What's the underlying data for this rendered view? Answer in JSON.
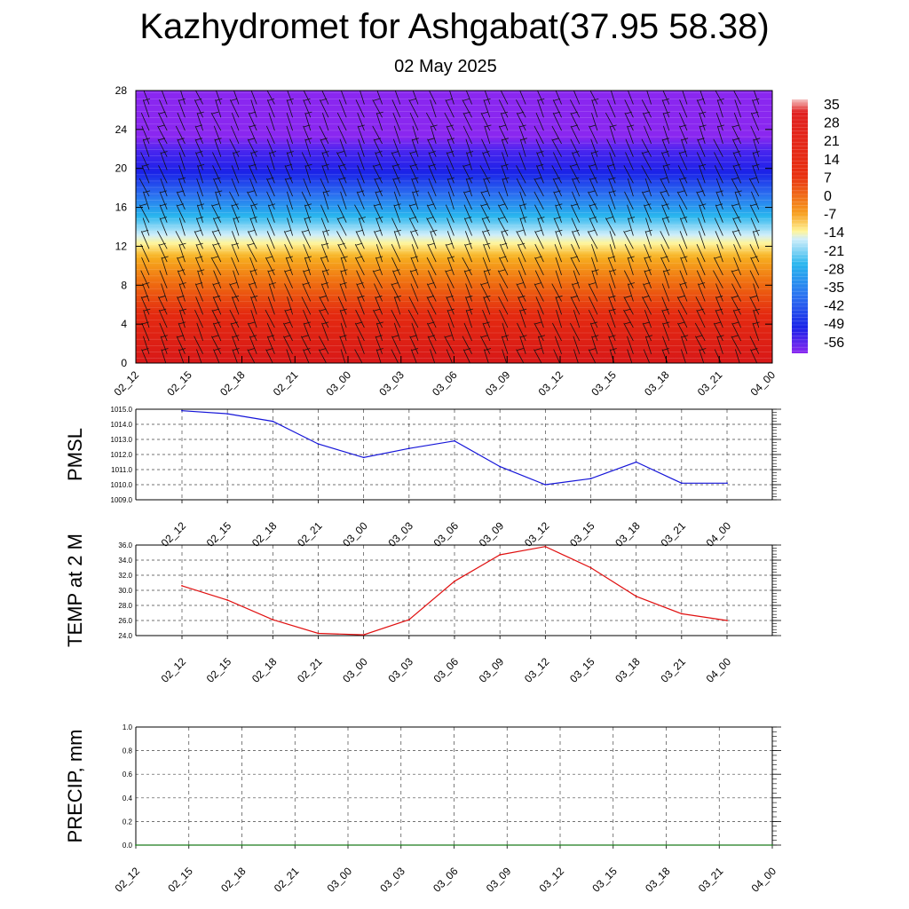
{
  "title": "Kazhydromet for Ashgabat(37.95 58.38)",
  "subtitle": "02 May 2025",
  "chart_data": [
    {
      "type": "heatmap",
      "name": "temperature-wind-cross-section",
      "x_labels": [
        "02_12",
        "02_15",
        "02_18",
        "02_21",
        "03_00",
        "03_03",
        "03_06",
        "03_09",
        "03_12",
        "03_15",
        "03_18",
        "03_21",
        "04_00"
      ],
      "y_ticks": [
        0,
        4,
        8,
        12,
        16,
        20,
        24,
        28
      ],
      "ylim": [
        0,
        28
      ],
      "colorbar_labels": [
        "35",
        "28",
        "21",
        "14",
        "7",
        "0",
        "-7",
        "-14",
        "-21",
        "-28",
        "-35",
        "-42",
        "-49",
        "-56"
      ],
      "colors": {
        "hot_top": "#f7b5b5",
        "hot": "#d81818",
        "orange": "#f58a10",
        "yellow": "#fff59a",
        "cyan": "#28b5ee",
        "blue": "#1a22e8",
        "purple": "#8a27f0"
      }
    },
    {
      "type": "line",
      "name": "pmsl",
      "ylabel": "PMSL",
      "x": [
        "02_12",
        "02_15",
        "02_18",
        "02_21",
        "03_00",
        "03_03",
        "03_06",
        "03_09",
        "03_12",
        "03_15",
        "03_18",
        "03_21",
        "04_00"
      ],
      "values": [
        1014.9,
        1014.7,
        1014.2,
        1012.7,
        1011.8,
        1012.4,
        1012.9,
        1011.2,
        1010.0,
        1010.4,
        1011.5,
        1010.1,
        1010.1
      ],
      "ylim": [
        1009.0,
        1015.0
      ],
      "y_ticks": [
        "1009.0",
        "1010.0",
        "1011.0",
        "1012.0",
        "1013.0",
        "1014.0",
        "1015.0"
      ],
      "color": "#1515d8"
    },
    {
      "type": "line",
      "name": "temp-2m",
      "ylabel": "TEMP at 2 M",
      "x": [
        "02_12",
        "02_15",
        "02_18",
        "02_21",
        "03_00",
        "03_03",
        "03_06",
        "03_09",
        "03_12",
        "03_15",
        "03_18",
        "03_21",
        "04_00"
      ],
      "values": [
        30.6,
        28.7,
        26.1,
        24.3,
        24.1,
        26.1,
        31.2,
        34.7,
        35.8,
        33.0,
        29.2,
        26.9,
        26.0
      ],
      "ylim": [
        24.0,
        36.0
      ],
      "y_ticks": [
        "24.0",
        "26.0",
        "28.0",
        "30.0",
        "32.0",
        "34.0",
        "36.0"
      ],
      "color": "#e01010"
    },
    {
      "type": "line",
      "name": "precip",
      "ylabel": "PRECIP, mm",
      "x": [
        "02_12",
        "02_15",
        "02_18",
        "02_21",
        "03_00",
        "03_03",
        "03_06",
        "03_09",
        "03_12",
        "03_15",
        "03_18",
        "03_21",
        "04_00"
      ],
      "values": [
        0,
        0,
        0,
        0,
        0,
        0,
        0,
        0,
        0,
        0,
        0,
        0,
        0
      ],
      "ylim": [
        0.0,
        1.0
      ],
      "y_ticks": [
        "0.0",
        "0.2",
        "0.4",
        "0.6",
        "0.8",
        "1.0"
      ],
      "color": "#1a7a1a"
    }
  ]
}
